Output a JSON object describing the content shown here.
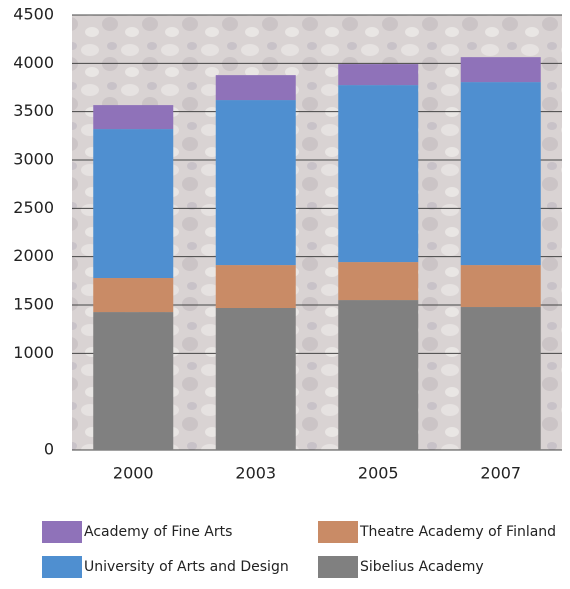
{
  "chart_data": {
    "type": "stacked_bar",
    "categories": [
      "2000",
      "2003",
      "2005",
      "2007"
    ],
    "series": [
      {
        "name": "Sibelius Academy",
        "color": "#808080",
        "values": [
          1427,
          1469,
          1551,
          1479
        ]
      },
      {
        "name": "Theatre Academy of Finland",
        "color": "#c98b66",
        "values": [
          352,
          444,
          393,
          434
        ]
      },
      {
        "name": "University of Arts and Design",
        "color": "#4f8fd0",
        "values": [
          1541,
          1707,
          1831,
          1893
        ]
      },
      {
        "name": "Academy of Fine Arts",
        "color": "#8f72b9",
        "values": [
          248,
          258,
          217,
          258
        ]
      }
    ],
    "ylim": [
      0,
      4500
    ],
    "yticks": [
      0,
      1000,
      1500,
      2000,
      2500,
      3000,
      3500,
      4000,
      4500
    ],
    "grid": true
  }
}
